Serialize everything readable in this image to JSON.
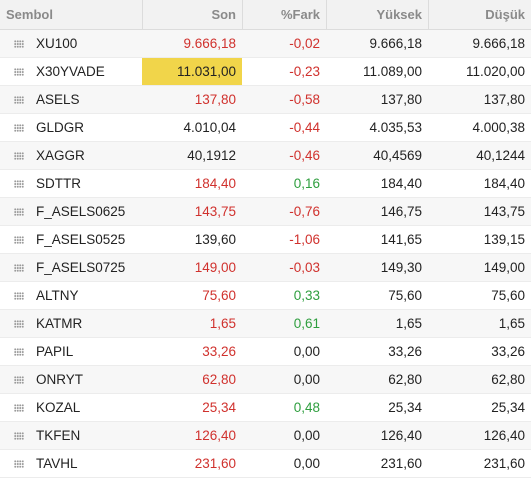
{
  "header": {
    "symbol": "Sembol",
    "last": "Son",
    "change": "%Fark",
    "high": "Yüksek",
    "low": "Düşük"
  },
  "colors": {
    "up": "#2e9e3e",
    "down": "#d0312d",
    "highlight": "#f1d54a"
  },
  "rows": [
    {
      "symbol": "XU100",
      "last": "9.666,18",
      "change": "-0,02",
      "high": "9.666,18",
      "low": "9.666,18",
      "last_color": "red",
      "change_color": "red",
      "highlight": false
    },
    {
      "symbol": "X30YVADE",
      "last": "11.031,00",
      "change": "-0,23",
      "high": "11.089,00",
      "low": "11.020,00",
      "last_color": "num",
      "change_color": "red",
      "highlight": true
    },
    {
      "symbol": "ASELS",
      "last": "137,80",
      "change": "-0,58",
      "high": "137,80",
      "low": "137,80",
      "last_color": "red",
      "change_color": "red",
      "highlight": false
    },
    {
      "symbol": "GLDGR",
      "last": "4.010,04",
      "change": "-0,44",
      "high": "4.035,53",
      "low": "4.000,38",
      "last_color": "num",
      "change_color": "red",
      "highlight": false
    },
    {
      "symbol": "XAGGR",
      "last": "40,1912",
      "change": "-0,46",
      "high": "40,4569",
      "low": "40,1244",
      "last_color": "num",
      "change_color": "red",
      "highlight": false
    },
    {
      "symbol": "SDTTR",
      "last": "184,40",
      "change": "0,16",
      "high": "184,40",
      "low": "184,40",
      "last_color": "red",
      "change_color": "green",
      "highlight": false
    },
    {
      "symbol": "F_ASELS0625",
      "last": "143,75",
      "change": "-0,76",
      "high": "146,75",
      "low": "143,75",
      "last_color": "red",
      "change_color": "red",
      "highlight": false
    },
    {
      "symbol": "F_ASELS0525",
      "last": "139,60",
      "change": "-1,06",
      "high": "141,65",
      "low": "139,15",
      "last_color": "num",
      "change_color": "red",
      "highlight": false
    },
    {
      "symbol": "F_ASELS0725",
      "last": "149,00",
      "change": "-0,03",
      "high": "149,30",
      "low": "149,00",
      "last_color": "red",
      "change_color": "red",
      "highlight": false
    },
    {
      "symbol": "ALTNY",
      "last": "75,60",
      "change": "0,33",
      "high": "75,60",
      "low": "75,60",
      "last_color": "red",
      "change_color": "green",
      "highlight": false
    },
    {
      "symbol": "KATMR",
      "last": "1,65",
      "change": "0,61",
      "high": "1,65",
      "low": "1,65",
      "last_color": "red",
      "change_color": "green",
      "highlight": false
    },
    {
      "symbol": "PAPIL",
      "last": "33,26",
      "change": "0,00",
      "high": "33,26",
      "low": "33,26",
      "last_color": "red",
      "change_color": "num",
      "highlight": false
    },
    {
      "symbol": "ONRYT",
      "last": "62,80",
      "change": "0,00",
      "high": "62,80",
      "low": "62,80",
      "last_color": "red",
      "change_color": "num",
      "highlight": false
    },
    {
      "symbol": "KOZAL",
      "last": "25,34",
      "change": "0,48",
      "high": "25,34",
      "low": "25,34",
      "last_color": "red",
      "change_color": "green",
      "highlight": false
    },
    {
      "symbol": "TKFEN",
      "last": "126,40",
      "change": "0,00",
      "high": "126,40",
      "low": "126,40",
      "last_color": "red",
      "change_color": "num",
      "highlight": false
    },
    {
      "symbol": "TAVHL",
      "last": "231,60",
      "change": "0,00",
      "high": "231,60",
      "low": "231,60",
      "last_color": "red",
      "change_color": "num",
      "highlight": false
    }
  ]
}
